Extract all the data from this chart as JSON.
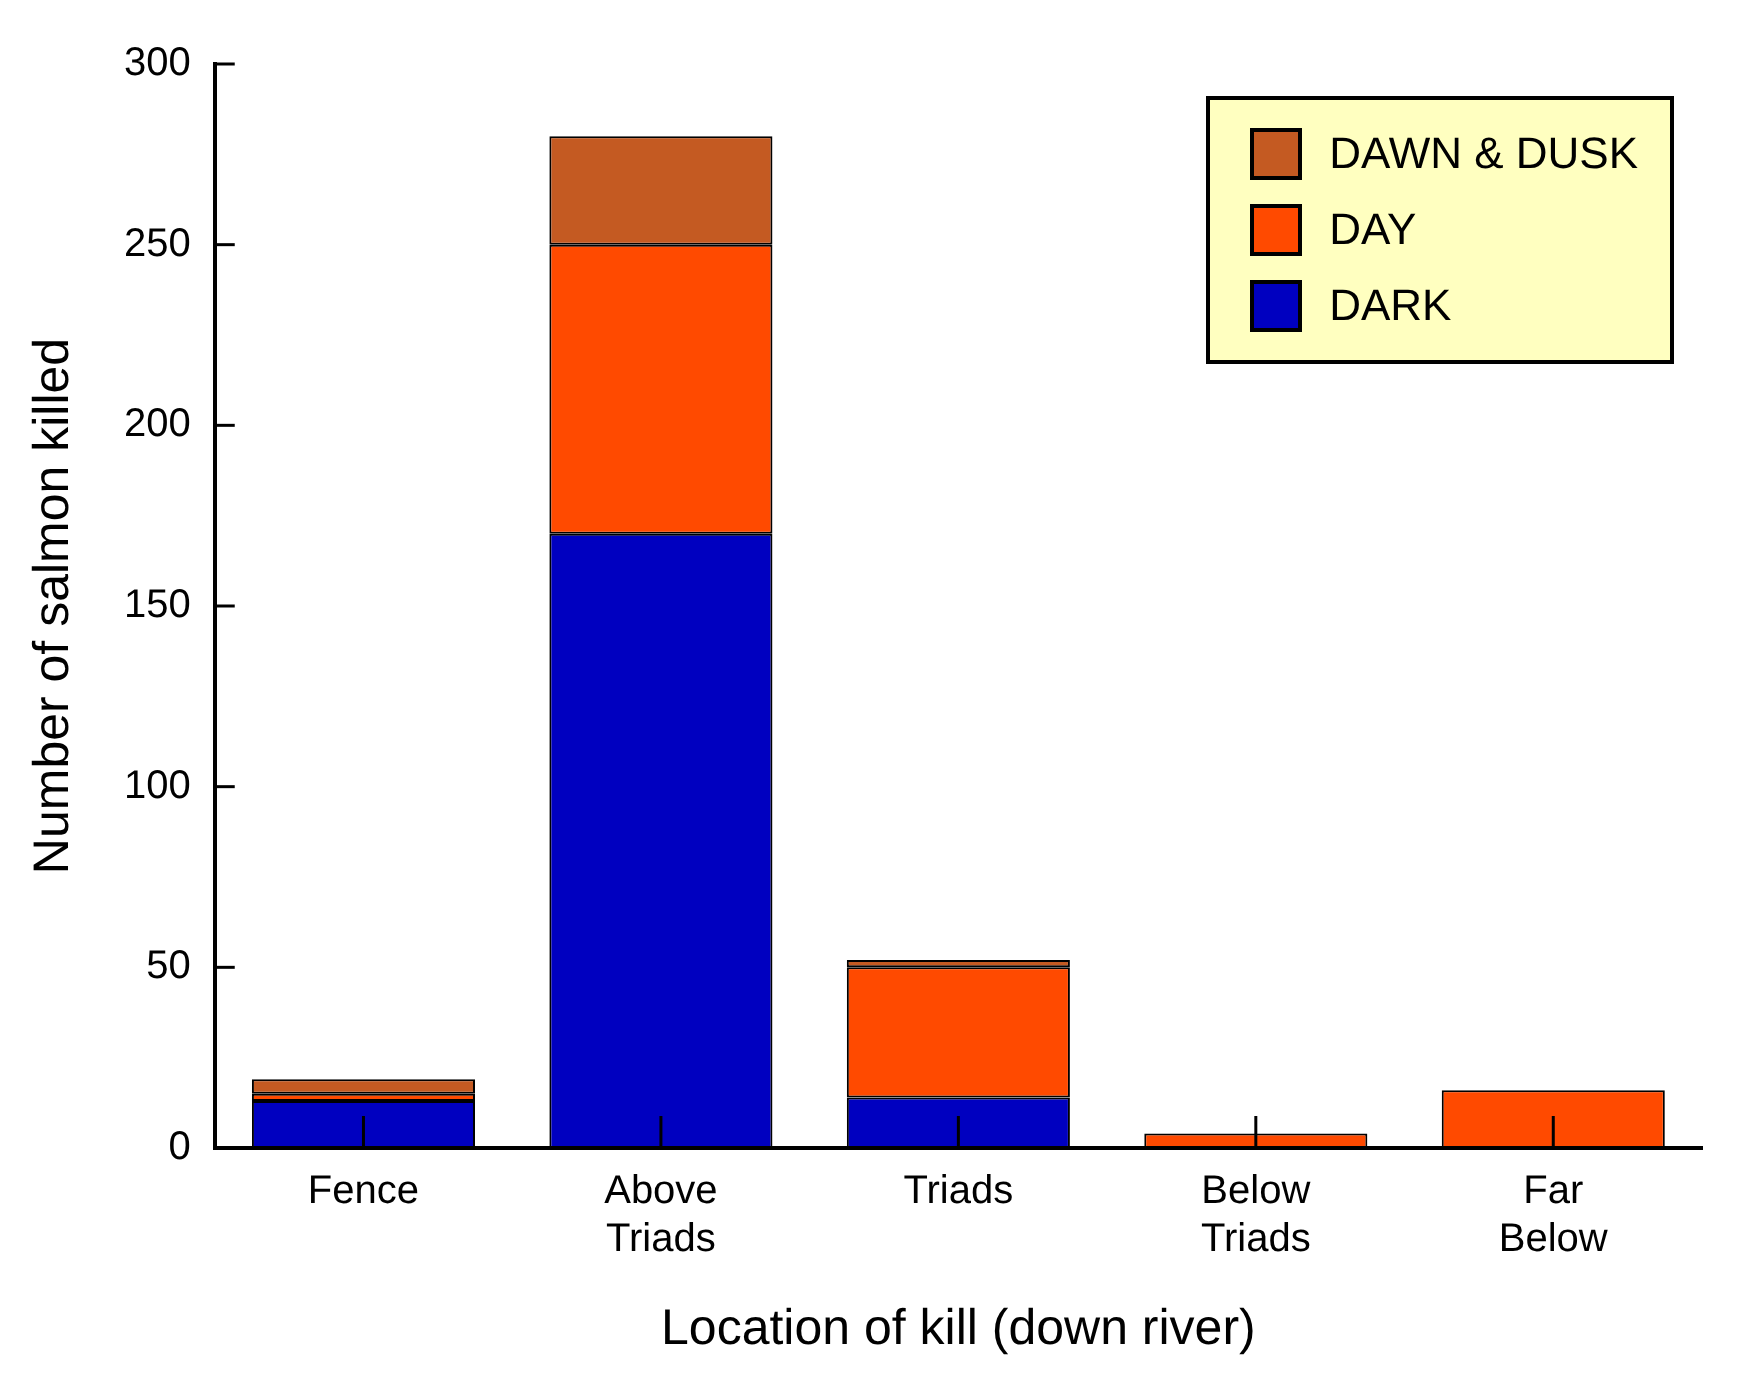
{
  "chart_data": {
    "type": "bar",
    "stacked": true,
    "xlabel": "Location of kill (down river)",
    "ylabel": "Number of salmon killed",
    "categories": [
      "Fence",
      "Above Triads",
      "Triads",
      "Below Triads",
      "Far Below"
    ],
    "series": [
      {
        "name": "DARK",
        "color": "#0000c0",
        "values": [
          13,
          170,
          14,
          0,
          0
        ]
      },
      {
        "name": "DAY",
        "color": "#ff4a00",
        "values": [
          2,
          80,
          36,
          4,
          16
        ]
      },
      {
        "name": "DAWN & DUSK",
        "color": "#c45a22",
        "values": [
          4,
          30,
          2,
          0,
          0
        ]
      }
    ],
    "ylim": [
      0,
      300
    ],
    "yticks": [
      0,
      50,
      100,
      150,
      200,
      250,
      300
    ],
    "grid": false,
    "legend": "top right"
  }
}
